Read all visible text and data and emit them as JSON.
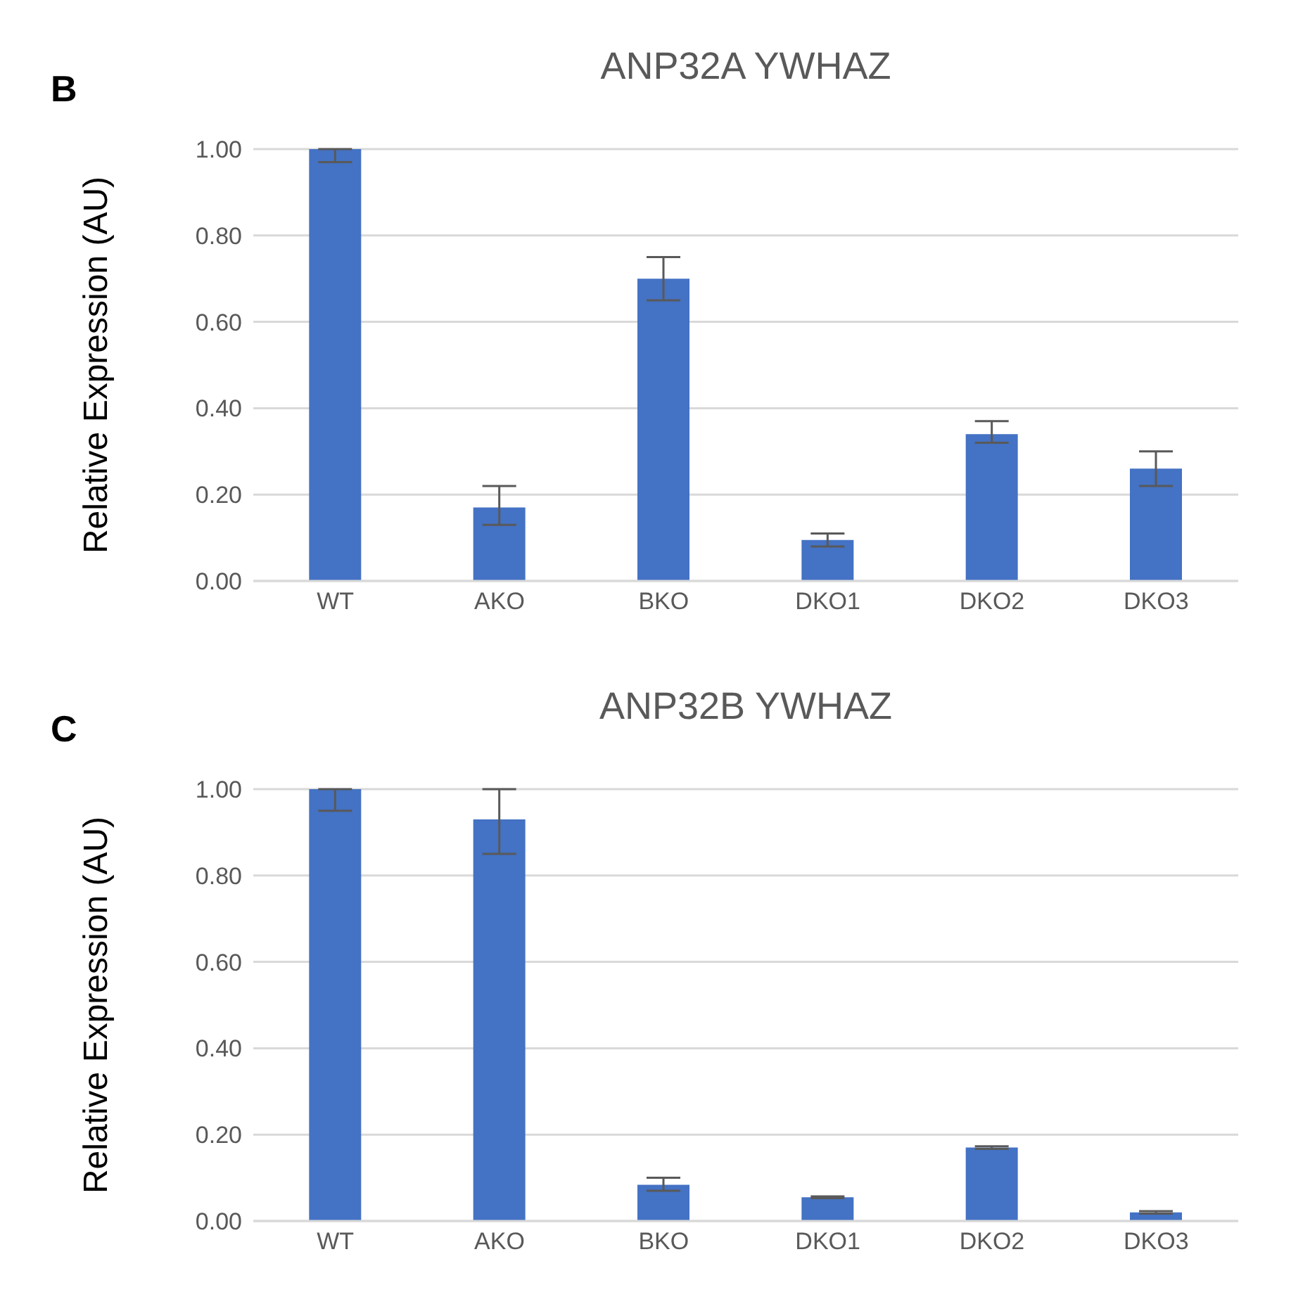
{
  "chart_data": [
    {
      "type": "bar",
      "title": "ANP32A YWHAZ",
      "ylabel": "Relative Expression (AU)",
      "annotations": [
        "B"
      ],
      "categories": [
        "WT",
        "AKO",
        "BKO",
        "DKO1",
        "DKO2",
        "DKO3"
      ],
      "values": [
        1.0,
        0.17,
        0.7,
        0.095,
        0.34,
        0.26
      ],
      "color": "#4472c4",
      "errors": [
        [
          0.97,
          1.0
        ],
        [
          0.13,
          0.22
        ],
        [
          0.65,
          0.75
        ],
        [
          0.08,
          0.11
        ],
        [
          0.32,
          0.37
        ],
        [
          0.22,
          0.3
        ]
      ],
      "ylim": [
        0,
        1
      ],
      "yticks": [
        {
          "value": 0,
          "label": "0.00"
        },
        {
          "value": 0.2,
          "label": "0.20"
        },
        {
          "value": 0.4,
          "label": "0.40"
        },
        {
          "value": 0.6,
          "label": "0.60"
        },
        {
          "value": 0.8,
          "label": "0.80"
        },
        {
          "value": 1,
          "label": "1.00"
        }
      ],
      "grid": "y"
    },
    {
      "type": "bar",
      "title": "ANP32B YWHAZ",
      "ylabel": "Relative Expression (AU)",
      "annotations": [
        "C"
      ],
      "categories": [
        "WT",
        "AKO",
        "BKO",
        "DKO1",
        "DKO2",
        "DKO3"
      ],
      "values": [
        1.0,
        0.93,
        0.084,
        0.055,
        0.17,
        0.02
      ],
      "color": "#4472c4",
      "errors": [
        [
          0.95,
          1.0
        ],
        [
          0.85,
          1.0
        ],
        [
          0.07,
          0.1
        ],
        [
          0.053,
          0.057
        ],
        [
          0.167,
          0.173
        ],
        [
          0.017,
          0.023
        ]
      ],
      "ylim": [
        0,
        1
      ],
      "yticks": [
        {
          "value": 0,
          "label": "0.00"
        },
        {
          "value": 0.2,
          "label": "0.20"
        },
        {
          "value": 0.4,
          "label": "0.40"
        },
        {
          "value": 0.6,
          "label": "0.60"
        },
        {
          "value": 0.8,
          "label": "0.80"
        },
        {
          "value": 1,
          "label": "1.00"
        }
      ],
      "grid": "y"
    }
  ]
}
